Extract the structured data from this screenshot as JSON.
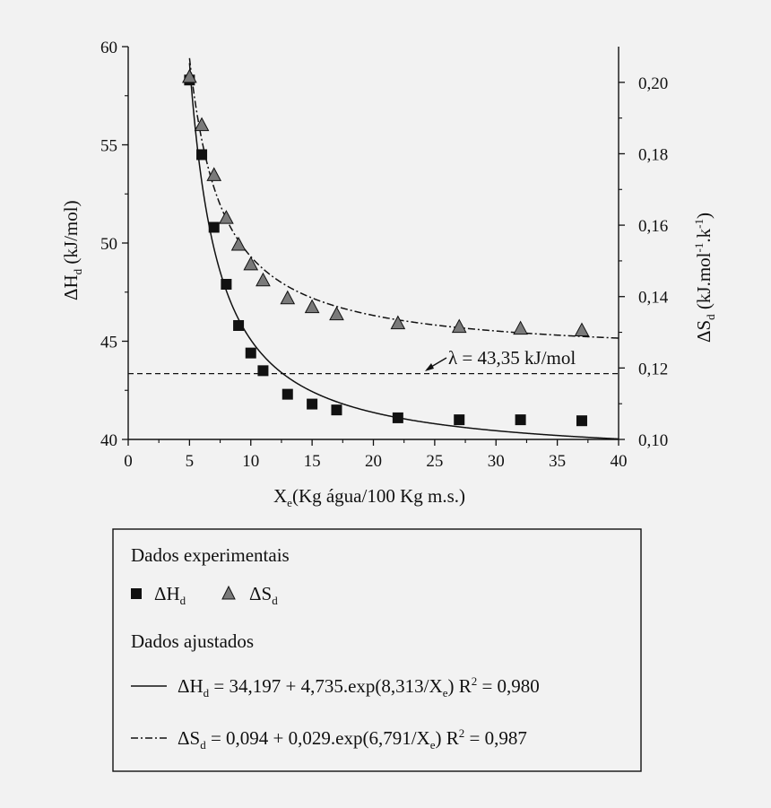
{
  "chart_data": {
    "type": "scatter",
    "x": {
      "range": [
        0,
        40
      ],
      "ticks": [
        0,
        5,
        10,
        15,
        20,
        25,
        30,
        35,
        40
      ],
      "tick_labels": [
        "0",
        "5",
        "10",
        "15",
        "20",
        "25",
        "30",
        "35",
        "40"
      ],
      "label_prefix": "X",
      "label_sub": "e",
      "label_rest": "(Kg água/100 Kg m.s.)"
    },
    "y_left": {
      "range": [
        40,
        60
      ],
      "ticks": [
        40,
        45,
        50,
        55,
        60
      ],
      "tick_labels": [
        "40",
        "45",
        "50",
        "55",
        "60"
      ],
      "label_prefix": "ΔH",
      "label_sub": "d",
      "label_rest": " (kJ/mol)"
    },
    "y_right": {
      "range": [
        0.1,
        0.21
      ],
      "ticks": [
        0.1,
        0.12,
        0.14,
        0.16,
        0.18,
        0.2
      ],
      "tick_labels": [
        "0,10",
        "0,12",
        "0,14",
        "0,16",
        "0,18",
        "0,20"
      ],
      "label_prefix": "ΔS",
      "label_sub": "d",
      "label_rest": " (kJ.mol",
      "label_sup1": "-1",
      "label_mid": ".k",
      "label_sup2": "-1",
      "label_end": ")"
    },
    "series": [
      {
        "name": "ΔH_d",
        "axis": "left",
        "marker": "square",
        "color": "#111111",
        "points": [
          [
            5,
            58.3
          ],
          [
            6,
            54.5
          ],
          [
            7,
            50.8
          ],
          [
            8,
            47.9
          ],
          [
            9,
            45.8
          ],
          [
            10,
            44.4
          ],
          [
            11,
            43.5
          ],
          [
            13,
            42.3
          ],
          [
            15,
            41.8
          ],
          [
            17,
            41.5
          ],
          [
            22,
            41.1
          ],
          [
            27,
            41.0
          ],
          [
            32,
            41.0
          ],
          [
            37,
            40.95
          ]
        ]
      },
      {
        "name": "ΔS_d",
        "axis": "right",
        "marker": "triangle",
        "color": "#7a7a7a",
        "points": [
          [
            5,
            0.2015
          ],
          [
            6,
            0.188
          ],
          [
            7,
            0.174
          ],
          [
            8,
            0.162
          ],
          [
            9,
            0.1545
          ],
          [
            10,
            0.149
          ],
          [
            11,
            0.1445
          ],
          [
            13,
            0.1395
          ],
          [
            15,
            0.137
          ],
          [
            17,
            0.135
          ],
          [
            22,
            0.1325
          ],
          [
            27,
            0.1315
          ],
          [
            32,
            0.131
          ],
          [
            37,
            0.1305
          ]
        ]
      }
    ],
    "fits": [
      {
        "for": "ΔH_d",
        "a": 34.197,
        "b": 4.735,
        "c": 8.313,
        "style": "solid",
        "x_from": 5.0
      },
      {
        "for": "ΔS_d",
        "a": 0.094,
        "b": 0.029,
        "c": 6.791,
        "style": "dash-dot",
        "x_from": 5.0
      }
    ],
    "reference_line": {
      "axis": "left",
      "value": 43.35,
      "style": "dashed"
    },
    "annotation": "λ = 43,35 kJ/mol",
    "grid": false
  },
  "legend": {
    "heading_experimental": "Dados experimentais",
    "item_dh_main": "ΔH",
    "item_dh_sub": "d",
    "item_ds_main": "ΔS",
    "item_ds_sub": "d",
    "heading_fitted": "Dados ajustados",
    "eq_dh_part1": "ΔH",
    "eq_dh_sub1": "d",
    "eq_dh_part2": " = 34,197 + 4,735.exp(8,313/X",
    "eq_dh_sub2": "e",
    "eq_dh_part3": ") R",
    "eq_dh_sup": "2",
    "eq_dh_part4": " = 0,980",
    "eq_ds_part1": "ΔS",
    "eq_ds_sub1": "d",
    "eq_ds_part2": " = 0,094 + 0,029.exp(6,791/X",
    "eq_ds_sub2": "e",
    "eq_ds_part3": ") R",
    "eq_ds_sup": "2",
    "eq_ds_part4": " = 0,987"
  }
}
